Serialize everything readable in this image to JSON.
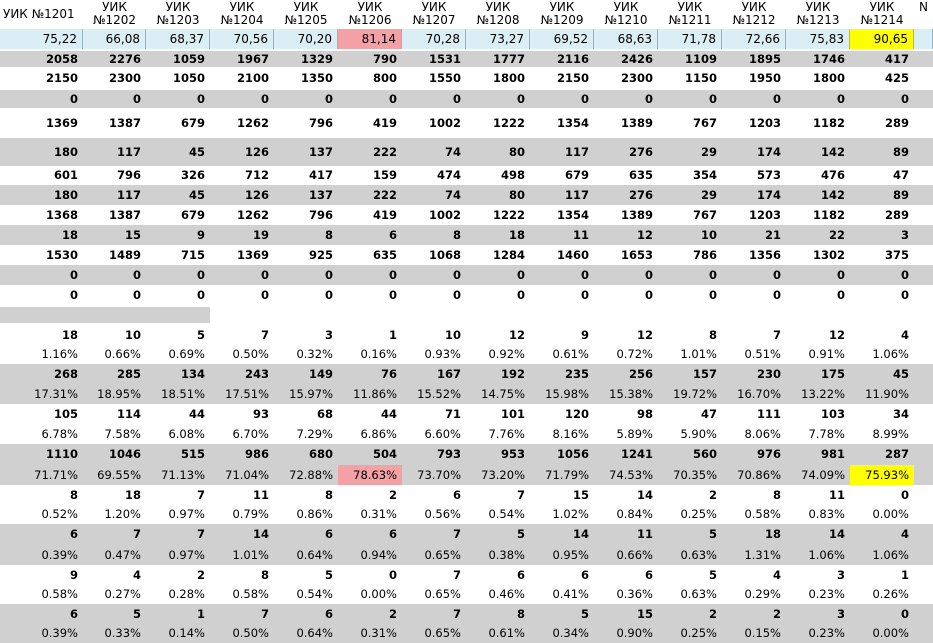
{
  "header": {
    "first": "УИК №1201",
    "cols": [
      "УИК\n№1202",
      "УИК\n№1203",
      "УИК\n№1204",
      "УИК\n№1205",
      "УИК\n№1206",
      "УИК\n№1207",
      "УИК\n№1208",
      "УИК\n№1209",
      "УИК\n№1210",
      "УИК\n№1211",
      "УИК\n№1212",
      "УИК\n№1213",
      "УИК\n№1214",
      "N"
    ]
  },
  "highlights": {
    "pink": "#f4a1a6",
    "yellow": "#ffff00",
    "grey": "#d0d0d0",
    "blue": "#dbeef5"
  },
  "rows": [
    {
      "id": "turnout",
      "style": "blue",
      "values": [
        "75,22",
        "66,08",
        "68,37",
        "70,56",
        "70,20",
        "81,14",
        "70,28",
        "73,27",
        "69,52",
        "68,63",
        "71,78",
        "72,66",
        "75,83",
        "90,65"
      ]
    },
    {
      "id": "r1",
      "style": "grey bold",
      "values": [
        "2058",
        "2276",
        "1059",
        "1967",
        "1329",
        "790",
        "1531",
        "1777",
        "2116",
        "2426",
        "1109",
        "1895",
        "1746",
        "417"
      ]
    },
    {
      "id": "r2",
      "style": "bold",
      "values": [
        "2150",
        "2300",
        "1050",
        "2100",
        "1350",
        "800",
        "1550",
        "1800",
        "2150",
        "2300",
        "1150",
        "1950",
        "1800",
        "425"
      ]
    },
    {
      "id": "r3",
      "style": "grey bold",
      "values": [
        "0",
        "0",
        "0",
        "0",
        "0",
        "0",
        "0",
        "0",
        "0",
        "0",
        "0",
        "0",
        "0",
        "0"
      ]
    },
    {
      "id": "r4",
      "style": "bold",
      "values": [
        "1369",
        "1387",
        "679",
        "1262",
        "796",
        "419",
        "1002",
        "1222",
        "1354",
        "1389",
        "767",
        "1203",
        "1182",
        "289"
      ]
    },
    {
      "id": "r5",
      "style": "grey bold",
      "values": [
        "180",
        "117",
        "45",
        "126",
        "137",
        "222",
        "74",
        "80",
        "117",
        "276",
        "29",
        "174",
        "142",
        "89"
      ]
    },
    {
      "id": "r6",
      "style": "bold",
      "values": [
        "601",
        "796",
        "326",
        "712",
        "417",
        "159",
        "474",
        "498",
        "679",
        "635",
        "354",
        "573",
        "476",
        "47"
      ]
    },
    {
      "id": "r7",
      "style": "grey bold",
      "values": [
        "180",
        "117",
        "45",
        "126",
        "137",
        "222",
        "74",
        "80",
        "117",
        "276",
        "29",
        "174",
        "142",
        "89"
      ]
    },
    {
      "id": "r8",
      "style": "bold",
      "values": [
        "1368",
        "1387",
        "679",
        "1262",
        "796",
        "419",
        "1002",
        "1222",
        "1354",
        "1389",
        "767",
        "1203",
        "1182",
        "289"
      ]
    },
    {
      "id": "r9",
      "style": "grey bold",
      "values": [
        "18",
        "15",
        "9",
        "19",
        "8",
        "6",
        "8",
        "18",
        "11",
        "12",
        "10",
        "21",
        "22",
        "3"
      ]
    },
    {
      "id": "r10",
      "style": "bold",
      "values": [
        "1530",
        "1489",
        "715",
        "1369",
        "925",
        "635",
        "1068",
        "1284",
        "1460",
        "1653",
        "786",
        "1356",
        "1302",
        "375"
      ]
    },
    {
      "id": "r11",
      "style": "grey bold",
      "values": [
        "0",
        "0",
        "0",
        "0",
        "0",
        "0",
        "0",
        "0",
        "0",
        "0",
        "0",
        "0",
        "0",
        "0"
      ]
    },
    {
      "id": "r12",
      "style": "bold",
      "values": [
        "0",
        "0",
        "0",
        "0",
        "0",
        "0",
        "0",
        "0",
        "0",
        "0",
        "0",
        "0",
        "0",
        "0"
      ]
    },
    {
      "id": "r13",
      "style": "partial",
      "values": []
    },
    {
      "id": "c1",
      "style": "bold",
      "values": [
        "18",
        "10",
        "5",
        "7",
        "3",
        "1",
        "10",
        "12",
        "9",
        "12",
        "8",
        "7",
        "12",
        "4"
      ]
    },
    {
      "id": "c1p",
      "style": "",
      "values": [
        "1.16%",
        "0.66%",
        "0.69%",
        "0.50%",
        "0.32%",
        "0.16%",
        "0.93%",
        "0.92%",
        "0.61%",
        "0.72%",
        "1.01%",
        "0.51%",
        "0.91%",
        "1.06%"
      ]
    },
    {
      "id": "c2",
      "style": "grey bold",
      "values": [
        "268",
        "285",
        "134",
        "243",
        "149",
        "76",
        "167",
        "192",
        "235",
        "256",
        "157",
        "230",
        "175",
        "45"
      ]
    },
    {
      "id": "c2p",
      "style": "grey",
      "values": [
        "17.31%",
        "18.95%",
        "18.51%",
        "17.51%",
        "15.97%",
        "11.86%",
        "15.52%",
        "14.75%",
        "15.98%",
        "15.38%",
        "19.72%",
        "16.70%",
        "13.22%",
        "11.90%"
      ]
    },
    {
      "id": "c3",
      "style": "bold",
      "values": [
        "105",
        "114",
        "44",
        "93",
        "68",
        "44",
        "71",
        "101",
        "120",
        "98",
        "47",
        "111",
        "103",
        "34"
      ]
    },
    {
      "id": "c3p",
      "style": "",
      "values": [
        "6.78%",
        "7.58%",
        "6.08%",
        "6.70%",
        "7.29%",
        "6.86%",
        "6.60%",
        "7.76%",
        "8.16%",
        "5.89%",
        "5.90%",
        "8.06%",
        "7.78%",
        "8.99%"
      ]
    },
    {
      "id": "c4",
      "style": "grey bold",
      "values": [
        "1110",
        "1046",
        "515",
        "986",
        "680",
        "504",
        "793",
        "953",
        "1056",
        "1241",
        "560",
        "976",
        "981",
        "287"
      ]
    },
    {
      "id": "c4p",
      "style": "grey",
      "values": [
        "71.71%",
        "69.55%",
        "71.13%",
        "71.04%",
        "72.88%",
        "78.63%",
        "73.70%",
        "73.20%",
        "71.79%",
        "74.53%",
        "70.35%",
        "70.86%",
        "74.09%",
        "75.93%"
      ]
    },
    {
      "id": "c5",
      "style": "bold",
      "values": [
        "8",
        "18",
        "7",
        "11",
        "8",
        "2",
        "6",
        "7",
        "15",
        "14",
        "2",
        "8",
        "11",
        "0"
      ]
    },
    {
      "id": "c5p",
      "style": "",
      "values": [
        "0.52%",
        "1.20%",
        "0.97%",
        "0.79%",
        "0.86%",
        "0.31%",
        "0.56%",
        "0.54%",
        "1.02%",
        "0.84%",
        "0.25%",
        "0.58%",
        "0.83%",
        "0.00%"
      ]
    },
    {
      "id": "c6",
      "style": "grey bold",
      "values": [
        "6",
        "7",
        "7",
        "14",
        "6",
        "6",
        "7",
        "5",
        "14",
        "11",
        "5",
        "18",
        "14",
        "4"
      ]
    },
    {
      "id": "c6p",
      "style": "grey",
      "values": [
        "0.39%",
        "0.47%",
        "0.97%",
        "1.01%",
        "0.64%",
        "0.94%",
        "0.65%",
        "0.38%",
        "0.95%",
        "0.66%",
        "0.63%",
        "1.31%",
        "1.06%",
        "1.06%"
      ]
    },
    {
      "id": "c7",
      "style": "bold",
      "values": [
        "9",
        "4",
        "2",
        "8",
        "5",
        "0",
        "7",
        "6",
        "6",
        "6",
        "5",
        "4",
        "3",
        "1"
      ]
    },
    {
      "id": "c7p",
      "style": "",
      "values": [
        "0.58%",
        "0.27%",
        "0.28%",
        "0.58%",
        "0.54%",
        "0.00%",
        "0.65%",
        "0.46%",
        "0.41%",
        "0.36%",
        "0.63%",
        "0.29%",
        "0.23%",
        "0.26%"
      ]
    },
    {
      "id": "c8",
      "style": "grey bold",
      "values": [
        "6",
        "5",
        "1",
        "7",
        "6",
        "2",
        "7",
        "8",
        "5",
        "15",
        "2",
        "2",
        "3",
        "0"
      ]
    },
    {
      "id": "c8p",
      "style": "grey",
      "values": [
        "0.39%",
        "0.33%",
        "0.14%",
        "0.50%",
        "0.64%",
        "0.31%",
        "0.65%",
        "0.61%",
        "0.34%",
        "0.90%",
        "0.25%",
        "0.15%",
        "0.23%",
        "0.00%"
      ]
    }
  ]
}
